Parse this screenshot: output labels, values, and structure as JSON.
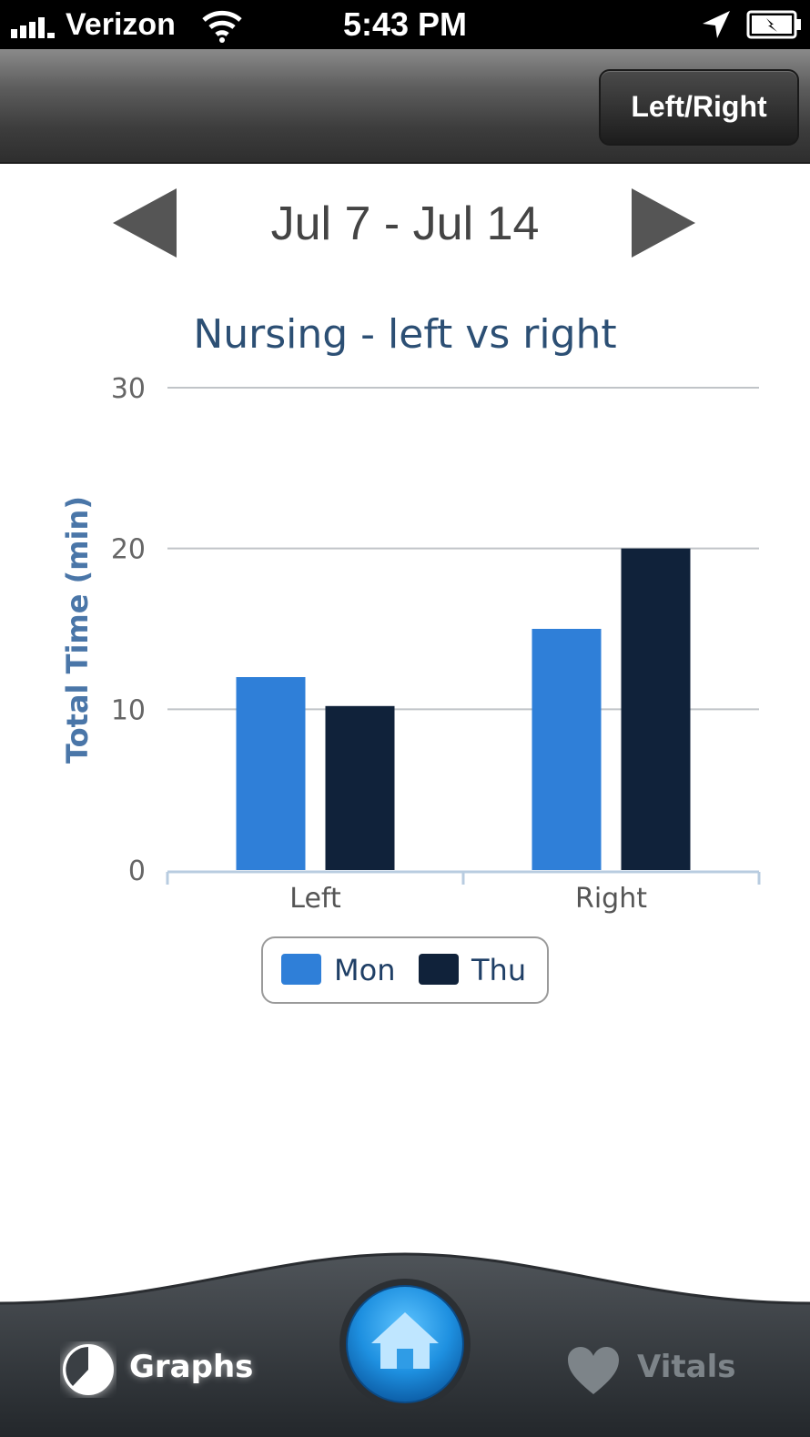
{
  "status_bar": {
    "carrier": "Verizon",
    "time": "5:43 PM"
  },
  "nav": {
    "right_button_label": "Left/Right"
  },
  "date_selector": {
    "range_label": "Jul 7 - Jul 14"
  },
  "chart_data": {
    "type": "bar",
    "title": "Nursing - left vs right",
    "xlabel": "",
    "ylabel": "Total Time (min)",
    "categories": [
      "Left",
      "Right"
    ],
    "series": [
      {
        "name": "Mon",
        "values": [
          12,
          15
        ],
        "color": "#2f7fd8"
      },
      {
        "name": "Thu",
        "values": [
          10.2,
          20
        ],
        "color": "#10223a"
      }
    ],
    "ylim": [
      0,
      30
    ],
    "yticks": [
      0,
      10,
      20,
      30
    ],
    "grid": true,
    "legend_position": "bottom-center"
  },
  "tabbar": {
    "graphs_label": "Graphs",
    "vitals_label": "Vitals"
  },
  "icons": {
    "prev": "triangle-left-icon",
    "next": "triangle-right-icon",
    "graphs": "pie-icon",
    "home": "home-icon",
    "vitals": "heart-icon"
  },
  "colors": {
    "title": "#2c4f74",
    "axis_label": "#4a76a8",
    "home_blue": "#1e90e0"
  }
}
